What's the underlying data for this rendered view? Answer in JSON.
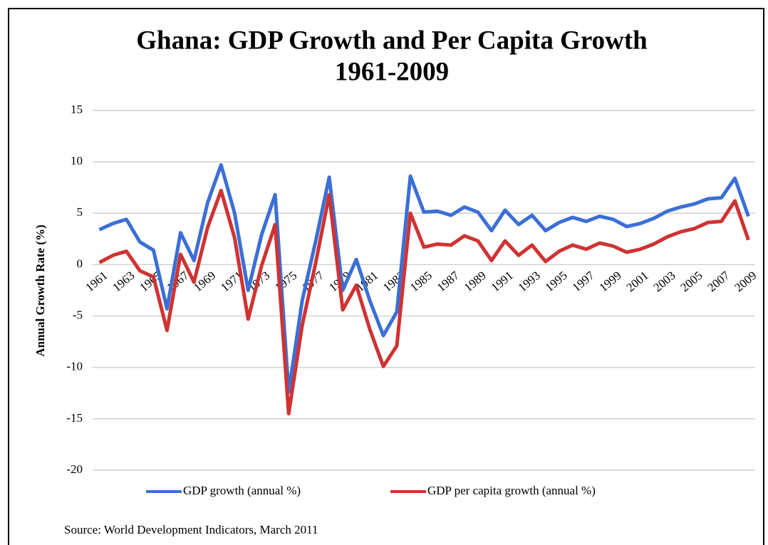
{
  "chart_data": {
    "type": "line",
    "title": "Ghana: GDP Growth and Per Capita Growth",
    "subtitle": "1961-2009",
    "y_axis_label": "Annual Growth Rate (%)",
    "source": "Source: World Development Indicators, March 2011",
    "categories": [
      "1961",
      null,
      "1963",
      null,
      "1965",
      null,
      "1967",
      null,
      "1969",
      null,
      "1971",
      null,
      "1973",
      null,
      "1975",
      null,
      "1977",
      null,
      "1979",
      null,
      "1981",
      null,
      "1983",
      null,
      "1985",
      null,
      "1987",
      null,
      "1989",
      null,
      "1991",
      null,
      "1993",
      null,
      "1995",
      null,
      "1997",
      null,
      "1999",
      null,
      "2001",
      null,
      "2003",
      null,
      "2005",
      null,
      "2007",
      null,
      "2009"
    ],
    "series": [
      {
        "name": "GDP growth (annual %)",
        "color": "#3b6fd6",
        "values": [
          3.4,
          4.0,
          4.4,
          2.2,
          1.4,
          -4.3,
          3.1,
          0.4,
          6.0,
          9.7,
          5.0,
          -2.5,
          2.9,
          6.8,
          -12.4,
          -3.5,
          2.3,
          8.5,
          -2.5,
          0.5,
          -3.5,
          -6.9,
          -4.6,
          8.6,
          5.1,
          5.2,
          4.8,
          5.6,
          5.1,
          3.3,
          5.3,
          3.9,
          4.8,
          3.3,
          4.1,
          4.6,
          4.2,
          4.7,
          4.4,
          3.7,
          4.0,
          4.5,
          5.2,
          5.6,
          5.9,
          6.4,
          6.5,
          8.4,
          4.7
        ]
      },
      {
        "name": "GDP per capita growth (annual %)",
        "color": "#d03232",
        "values": [
          0.2,
          0.9,
          1.3,
          -0.6,
          -1.2,
          -6.4,
          1.0,
          -1.7,
          3.6,
          7.2,
          2.6,
          -5.3,
          -0.1,
          3.9,
          -14.5,
          -5.9,
          0.2,
          6.8,
          -4.4,
          -2.0,
          -6.3,
          -9.9,
          -7.9,
          5.0,
          1.7,
          2.0,
          1.9,
          2.8,
          2.3,
          0.4,
          2.3,
          0.9,
          1.9,
          0.3,
          1.3,
          1.9,
          1.5,
          2.1,
          1.8,
          1.2,
          1.5,
          2.0,
          2.7,
          3.2,
          3.5,
          4.1,
          4.2,
          6.2,
          2.4
        ]
      }
    ],
    "ylim": [
      -20,
      15
    ],
    "yticks": [
      -20,
      -15,
      -10,
      -5,
      0,
      5,
      10,
      15
    ],
    "grid": true
  }
}
